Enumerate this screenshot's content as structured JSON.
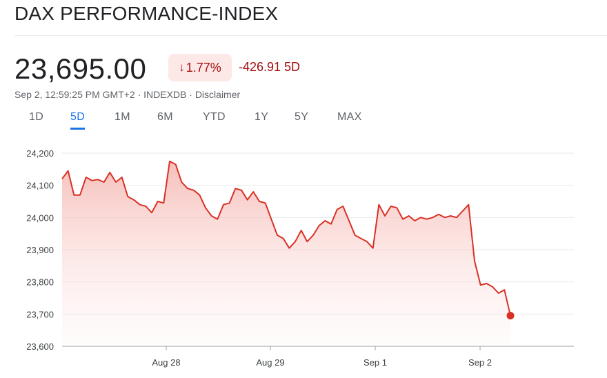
{
  "header": {
    "title": "DAX PERFORMANCE-INDEX",
    "price": "23,695.00",
    "change_pct": "1.77%",
    "change_pct_arrow": "↓",
    "change_abs": "-426.91 5D",
    "meta": "Sep 2, 12:59:25 PM GMT+2 · INDEXDB · Disclaimer"
  },
  "tabs": [
    {
      "label": "1D"
    },
    {
      "label": "5D",
      "active": true
    },
    {
      "label": "1M"
    },
    {
      "label": "6M"
    },
    {
      "label": "YTD"
    },
    {
      "label": "1Y"
    },
    {
      "label": "5Y"
    },
    {
      "label": "MAX"
    }
  ],
  "colors": {
    "negative": "#d93025",
    "negative_text": "#a50e0e",
    "accent": "#1a73e8"
  },
  "chart_data": {
    "type": "area",
    "title": "",
    "xlabel": "",
    "ylabel": "",
    "ylim": [
      23600,
      24200
    ],
    "yticks": [
      "24,200",
      "24,100",
      "24,000",
      "23,900",
      "23,800",
      "23,700",
      "23,600"
    ],
    "xticks": [
      "Aug 28",
      "Aug 29",
      "Sep 1",
      "Sep 2"
    ],
    "grid": true,
    "series": [
      {
        "values": [
          24120,
          24145,
          24070,
          24070,
          24125,
          24115,
          24118,
          24110,
          24140,
          24110,
          24125,
          24065,
          24055,
          24040,
          24035,
          24015,
          24050,
          24045,
          24175,
          24165,
          24110,
          24090,
          24085,
          24070,
          24030,
          24005,
          23995,
          24040,
          24045,
          24090,
          24085,
          24055,
          24080,
          24050,
          24045,
          23995,
          23945,
          23935,
          23905,
          23925,
          23960,
          23925,
          23945,
          23975,
          23990,
          23980,
          24025,
          24035,
          23990,
          23945,
          23935,
          23925,
          23905,
          24040,
          24005,
          24035,
          24030,
          23995,
          24005,
          23990,
          24000,
          23995,
          24000,
          24010,
          24000,
          24005,
          24000,
          24020,
          24040,
          23865,
          23790,
          23795,
          23785,
          23765,
          23775,
          23695
        ]
      }
    ],
    "last_value": 23695
  }
}
